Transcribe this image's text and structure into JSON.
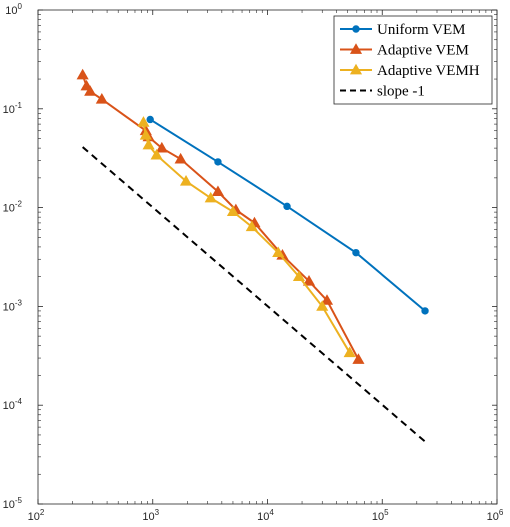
{
  "chart_data": {
    "type": "line",
    "xscale": "log",
    "yscale": "log",
    "xlim": [
      100,
      1000000
    ],
    "ylim": [
      1e-05,
      1
    ],
    "xticks": [
      {
        "value": 100,
        "base": "10",
        "exp": "2"
      },
      {
        "value": 1000,
        "base": "10",
        "exp": "3"
      },
      {
        "value": 10000,
        "base": "10",
        "exp": "4"
      },
      {
        "value": 100000,
        "base": "10",
        "exp": "5"
      },
      {
        "value": 1000000,
        "base": "10",
        "exp": "6"
      }
    ],
    "yticks": [
      {
        "value": 1e-05,
        "base": "10",
        "exp": "-5"
      },
      {
        "value": 0.0001,
        "base": "10",
        "exp": "-4"
      },
      {
        "value": 0.001,
        "base": "10",
        "exp": "-3"
      },
      {
        "value": 0.01,
        "base": "10",
        "exp": "-2"
      },
      {
        "value": 0.1,
        "base": "10",
        "exp": "-1"
      },
      {
        "value": 1,
        "base": "10",
        "exp": "0"
      }
    ],
    "grid": false,
    "legend_position": "top-right",
    "series": [
      {
        "name": "Uniform VEM",
        "color": "#0072BD",
        "marker": "circle",
        "dashed": false,
        "x": [
          950,
          3700,
          14800,
          59000,
          236000
        ],
        "y": [
          0.078,
          0.029,
          0.0103,
          0.0035,
          0.0009
        ]
      },
      {
        "name": "Adaptive VEM",
        "color": "#D95319",
        "marker": "triangle",
        "dashed": false,
        "x": [
          245,
          265,
          285,
          360,
          870,
          920,
          1200,
          1750,
          3700,
          5300,
          7700,
          13500,
          23000,
          33000,
          62000
        ],
        "y": [
          0.22,
          0.17,
          0.15,
          0.125,
          0.06,
          0.052,
          0.04,
          0.031,
          0.0145,
          0.0095,
          0.007,
          0.0033,
          0.0018,
          0.00115,
          0.00029
        ]
      },
      {
        "name": "Adaptive VEMH",
        "color": "#EDB120",
        "marker": "triangle",
        "dashed": false,
        "x": [
          830,
          870,
          920,
          1080,
          1950,
          3200,
          5000,
          7300,
          12400,
          18800,
          30000,
          52000
        ],
        "y": [
          0.073,
          0.054,
          0.043,
          0.034,
          0.0185,
          0.0125,
          0.0091,
          0.0064,
          0.0035,
          0.002,
          0.001,
          0.00034
        ]
      },
      {
        "name": "slope -1",
        "color": "#000000",
        "marker": "none",
        "dashed": true,
        "x": [
          245,
          235000
        ],
        "y": [
          0.041,
          4.3e-05
        ]
      }
    ]
  }
}
